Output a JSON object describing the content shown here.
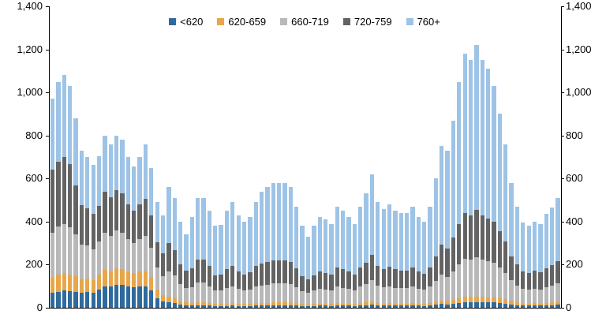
{
  "chart_data": {
    "type": "bar",
    "stacked": true,
    "title": "",
    "xlabel": "",
    "ylabel": "",
    "x_tick_labels_visible": false,
    "n_bars": 88,
    "ylim": [
      0,
      1400
    ],
    "y_ticks": [
      0,
      200,
      400,
      600,
      800,
      1000,
      1200,
      1400
    ],
    "y_tick_labels": [
      "0",
      "200",
      "400",
      "600",
      "800",
      "1,000",
      "1,200",
      "1,400"
    ],
    "y_axis_sides": [
      "left",
      "right"
    ],
    "grid": false,
    "legend_position": "top-center",
    "series": [
      {
        "name": "<620",
        "color": "#2f6a9d",
        "values": [
          70,
          75,
          80,
          78,
          75,
          70,
          72,
          68,
          85,
          100,
          98,
          105,
          105,
          100,
          95,
          100,
          100,
          80,
          45,
          30,
          25,
          22,
          15,
          12,
          10,
          12,
          12,
          10,
          8,
          8,
          9,
          10,
          9,
          8,
          9,
          10,
          10,
          10,
          11,
          11,
          11,
          11,
          10,
          8,
          8,
          9,
          10,
          10,
          9,
          11,
          10,
          10,
          9,
          11,
          12,
          14,
          11,
          10,
          11,
          10,
          10,
          10,
          11,
          10,
          9,
          11,
          14,
          17,
          16,
          19,
          22,
          25,
          25,
          26,
          25,
          24,
          24,
          22,
          20,
          16,
          12,
          10,
          10,
          10,
          10,
          11,
          12,
          13
        ]
      },
      {
        "name": "620-659",
        "color": "#e8a64a",
        "values": [
          70,
          78,
          80,
          75,
          70,
          62,
          64,
          60,
          68,
          75,
          72,
          78,
          75,
          70,
          65,
          70,
          70,
          58,
          38,
          28,
          25,
          22,
          16,
          13,
          12,
          14,
          14,
          12,
          10,
          10,
          11,
          12,
          10,
          10,
          10,
          12,
          12,
          12,
          13,
          13,
          13,
          13,
          11,
          9,
          8,
          9,
          10,
          10,
          9,
          11,
          10,
          10,
          9,
          11,
          12,
          14,
          11,
          10,
          11,
          10,
          10,
          10,
          11,
          10,
          9,
          11,
          14,
          17,
          16,
          19,
          22,
          25,
          25,
          26,
          25,
          24,
          24,
          22,
          20,
          16,
          12,
          10,
          10,
          11,
          10,
          11,
          12,
          13
        ]
      },
      {
        "name": "660-719",
        "color": "#b8b8b8",
        "values": [
          210,
          225,
          230,
          220,
          195,
          160,
          152,
          145,
          155,
          175,
          165,
          175,
          170,
          150,
          140,
          150,
          165,
          140,
          105,
          90,
          120,
          105,
          80,
          68,
          75,
          90,
          90,
          78,
          62,
          63,
          72,
          78,
          68,
          62,
          66,
          78,
          82,
          85,
          88,
          88,
          88,
          85,
          74,
          60,
          54,
          62,
          68,
          66,
          63,
          76,
          73,
          68,
          63,
          76,
          86,
          100,
          79,
          74,
          78,
          73,
          71,
          71,
          76,
          68,
          65,
          76,
          97,
          120,
          112,
          132,
          158,
          178,
          173,
          184,
          173,
          168,
          160,
          142,
          122,
          95,
          80,
          67,
          65,
          68,
          66,
          74,
          79,
          87
        ]
      },
      {
        "name": "720-759",
        "color": "#636363",
        "values": [
          290,
          300,
          310,
          295,
          230,
          185,
          175,
          165,
          165,
          190,
          180,
          190,
          180,
          160,
          150,
          160,
          170,
          150,
          115,
          105,
          130,
          120,
          92,
          80,
          88,
          108,
          108,
          95,
          72,
          73,
          86,
          94,
          82,
          75,
          79,
          93,
          100,
          104,
          108,
          108,
          108,
          104,
          88,
          70,
          62,
          71,
          79,
          77,
          73,
          89,
          85,
          79,
          73,
          89,
          100,
          118,
          93,
          87,
          91,
          85,
          83,
          83,
          89,
          79,
          76,
          89,
          113,
          141,
          132,
          156,
          188,
          212,
          207,
          220,
          207,
          200,
          192,
          170,
          146,
          112,
          96,
          81,
          78,
          82,
          80,
          89,
          95,
          104
        ]
      },
      {
        "name": "760+",
        "color": "#9dc3e6",
        "values": [
          330,
          372,
          380,
          362,
          310,
          253,
          237,
          227,
          232,
          260,
          245,
          252,
          250,
          220,
          205,
          220,
          255,
          222,
          187,
          177,
          260,
          241,
          197,
          167,
          235,
          286,
          286,
          255,
          228,
          231,
          272,
          296,
          261,
          245,
          256,
          297,
          336,
          349,
          360,
          360,
          360,
          347,
          287,
          233,
          198,
          229,
          253,
          247,
          236,
          283,
          272,
          253,
          236,
          283,
          320,
          374,
          296,
          279,
          289,
          272,
          266,
          266,
          283,
          253,
          241,
          283,
          362,
          455,
          454,
          544,
          660,
          740,
          720,
          764,
          720,
          694,
          630,
          544,
          452,
          341,
          270,
          227,
          217,
          229,
          224,
          250,
          267,
          293
        ]
      }
    ]
  }
}
